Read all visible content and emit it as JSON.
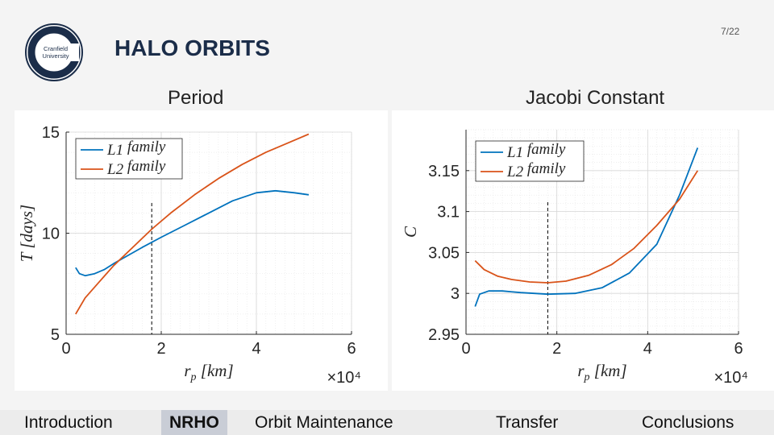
{
  "header": {
    "title": "HALO ORBITS",
    "page_number": "7/22",
    "logo_text_line1": "Cranfield",
    "logo_text_line2": "University"
  },
  "colors": {
    "l1": "#0072BD",
    "l2": "#D95319",
    "logo": "#1b2d49"
  },
  "nav": {
    "items": [
      {
        "label": "Introduction",
        "active": false
      },
      {
        "label": "NRHO",
        "active": true
      },
      {
        "label": "Orbit Maintenance",
        "active": false
      },
      {
        "label": "Transfer",
        "active": false
      },
      {
        "label": "Conclusions",
        "active": false
      }
    ]
  },
  "chart_data": [
    {
      "type": "line",
      "title": "Period",
      "xlabel": "r_p [km]",
      "ylabel": "T [days]",
      "x_multiplier": "×10⁴",
      "xlim": [
        0,
        6
      ],
      "ylim": [
        5,
        15
      ],
      "xticks": [
        "0",
        "2",
        "4",
        "6"
      ],
      "yticks": [
        "5",
        "10",
        "15"
      ],
      "grid": true,
      "legend_position": "top-left",
      "vline": 1.8,
      "series": [
        {
          "name": "L1 family",
          "x": [
            0.2,
            0.28,
            0.4,
            0.6,
            0.8,
            1.0,
            1.3,
            1.6,
            2.0,
            2.5,
            3.0,
            3.5,
            4.0,
            4.4,
            4.8,
            5.1
          ],
          "y": [
            8.3,
            8.0,
            7.9,
            8.0,
            8.2,
            8.5,
            8.9,
            9.3,
            9.8,
            10.4,
            11.0,
            11.6,
            12.0,
            12.1,
            12.0,
            11.9
          ]
        },
        {
          "name": "L2 family",
          "x": [
            0.2,
            0.4,
            0.7,
            1.0,
            1.4,
            1.8,
            2.2,
            2.7,
            3.2,
            3.7,
            4.2,
            4.6,
            5.1
          ],
          "y": [
            6.0,
            6.8,
            7.6,
            8.4,
            9.3,
            10.2,
            11.0,
            11.9,
            12.7,
            13.4,
            14.0,
            14.4,
            14.9
          ]
        }
      ]
    },
    {
      "type": "line",
      "title": "Jacobi Constant",
      "xlabel": "r_p [km]",
      "ylabel": "C",
      "x_multiplier": "×10⁴",
      "xlim": [
        0,
        6
      ],
      "ylim": [
        2.95,
        3.2
      ],
      "xticks": [
        "0",
        "2",
        "4",
        "6"
      ],
      "yticks": [
        "2.95",
        "3",
        "3.05",
        "3.1",
        "3.15"
      ],
      "grid": true,
      "legend_position": "top-left",
      "vline": 1.8,
      "series": [
        {
          "name": "L1 family",
          "x": [
            0.2,
            0.3,
            0.5,
            0.8,
            1.2,
            1.8,
            2.4,
            3.0,
            3.6,
            4.2,
            4.7,
            5.1
          ],
          "y": [
            2.984,
            2.999,
            3.003,
            3.003,
            3.001,
            2.999,
            3.0,
            3.007,
            3.025,
            3.06,
            3.12,
            3.178
          ]
        },
        {
          "name": "L2 family",
          "x": [
            0.2,
            0.4,
            0.7,
            1.0,
            1.4,
            1.8,
            2.2,
            2.7,
            3.2,
            3.7,
            4.2,
            4.7,
            5.1
          ],
          "y": [
            3.04,
            3.029,
            3.021,
            3.017,
            3.014,
            3.013,
            3.015,
            3.022,
            3.035,
            3.055,
            3.083,
            3.115,
            3.15
          ]
        }
      ]
    }
  ]
}
